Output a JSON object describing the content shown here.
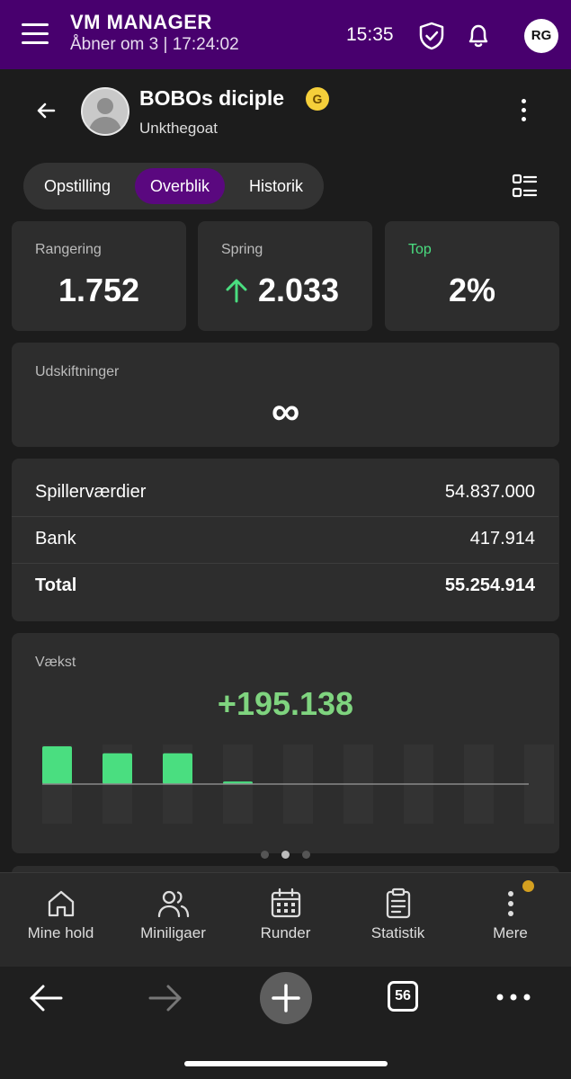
{
  "header": {
    "title": "VM MANAGER",
    "subtitle": "Åbner om 3 | 17:24:02",
    "time": "15:35",
    "avatar_initials": "RG",
    "accent": "#48006e"
  },
  "team": {
    "name": "BOBOs diciple",
    "badge": "G",
    "owner": "Unkthegoat"
  },
  "tabs": [
    {
      "label": "Opstilling",
      "active": false
    },
    {
      "label": "Overblik",
      "active": true
    },
    {
      "label": "Historik",
      "active": false
    }
  ],
  "stats": {
    "rank": {
      "label": "Rangering",
      "value": "1.752"
    },
    "jump": {
      "label": "Spring",
      "value": "2.033",
      "direction": "up"
    },
    "top": {
      "label": "Top",
      "value": "2%"
    }
  },
  "substitutions": {
    "label": "Udskiftninger",
    "value": "∞"
  },
  "finance": {
    "rows": [
      {
        "label": "Spillerværdier",
        "value": "54.837.000"
      },
      {
        "label": "Bank",
        "value": "417.914"
      },
      {
        "label": "Total",
        "value": "55.254.914"
      }
    ]
  },
  "growth": {
    "label": "Vækst",
    "value": "+195.138",
    "color": "#4ade80"
  },
  "chart_data": {
    "type": "bar",
    "categories": [
      "1",
      "2",
      "3",
      "4",
      "5",
      "6",
      "7",
      "8",
      "9"
    ],
    "values": [
      43,
      35,
      35,
      3,
      0,
      0,
      0,
      0,
      0
    ],
    "ylim": [
      0,
      45
    ]
  },
  "pager": {
    "count": 3,
    "active": 1
  },
  "bottom_nav": [
    {
      "label": "Mine hold",
      "icon": "home-icon"
    },
    {
      "label": "Miniligaer",
      "icon": "users-icon"
    },
    {
      "label": "Runder",
      "icon": "calendar-icon"
    },
    {
      "label": "Statistik",
      "icon": "clipboard-icon"
    },
    {
      "label": "Mere",
      "icon": "more-vertical-icon",
      "notification_dot": true
    }
  ],
  "browser": {
    "tab_count": "56"
  }
}
